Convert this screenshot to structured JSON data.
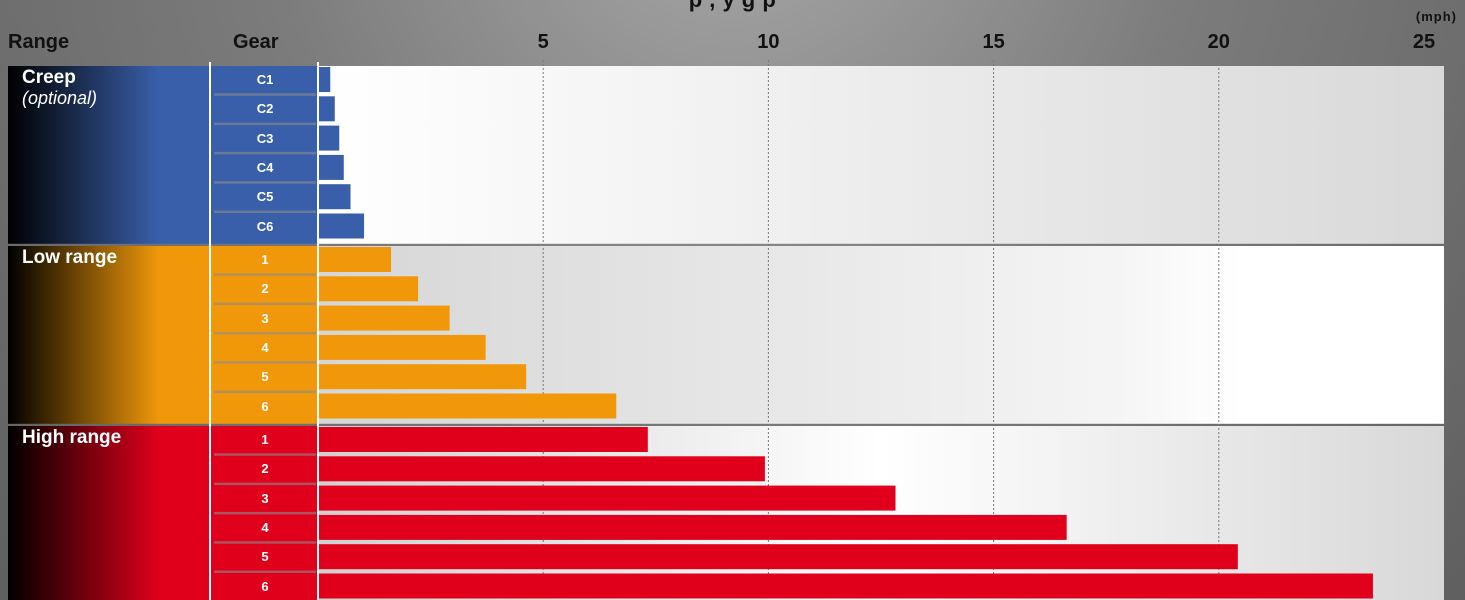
{
  "chart_data": {
    "type": "bar",
    "orientation": "horizontal",
    "title_fragment": "p  ,     y   g  p",
    "unit": "(mph)",
    "header": {
      "range": "Range",
      "gear": "Gear"
    },
    "x_ticks": [
      "5",
      "10",
      "15",
      "20",
      "25"
    ],
    "xlim": [
      0,
      25
    ],
    "grid": "vertical dotted",
    "groups": [
      {
        "name": "Creep",
        "subtitle": "(optional)",
        "color": "#3a5faa",
        "gears": [
          "C1",
          "C2",
          "C3",
          "C4",
          "C5",
          "C6"
        ],
        "values": [
          0.25,
          0.35,
          0.45,
          0.55,
          0.7,
          1.0
        ]
      },
      {
        "name": "Low range",
        "subtitle": "",
        "color": "#f0980a",
        "gears": [
          "1",
          "2",
          "3",
          "4",
          "5",
          "6"
        ],
        "values": [
          1.6,
          2.2,
          2.9,
          3.7,
          4.6,
          6.6
        ]
      },
      {
        "name": "High range",
        "subtitle": "",
        "color": "#e0001b",
        "gears": [
          "1",
          "2",
          "3",
          "4",
          "5",
          "6"
        ],
        "values": [
          7.3,
          9.9,
          12.8,
          16.6,
          20.4,
          23.4
        ]
      }
    ]
  }
}
